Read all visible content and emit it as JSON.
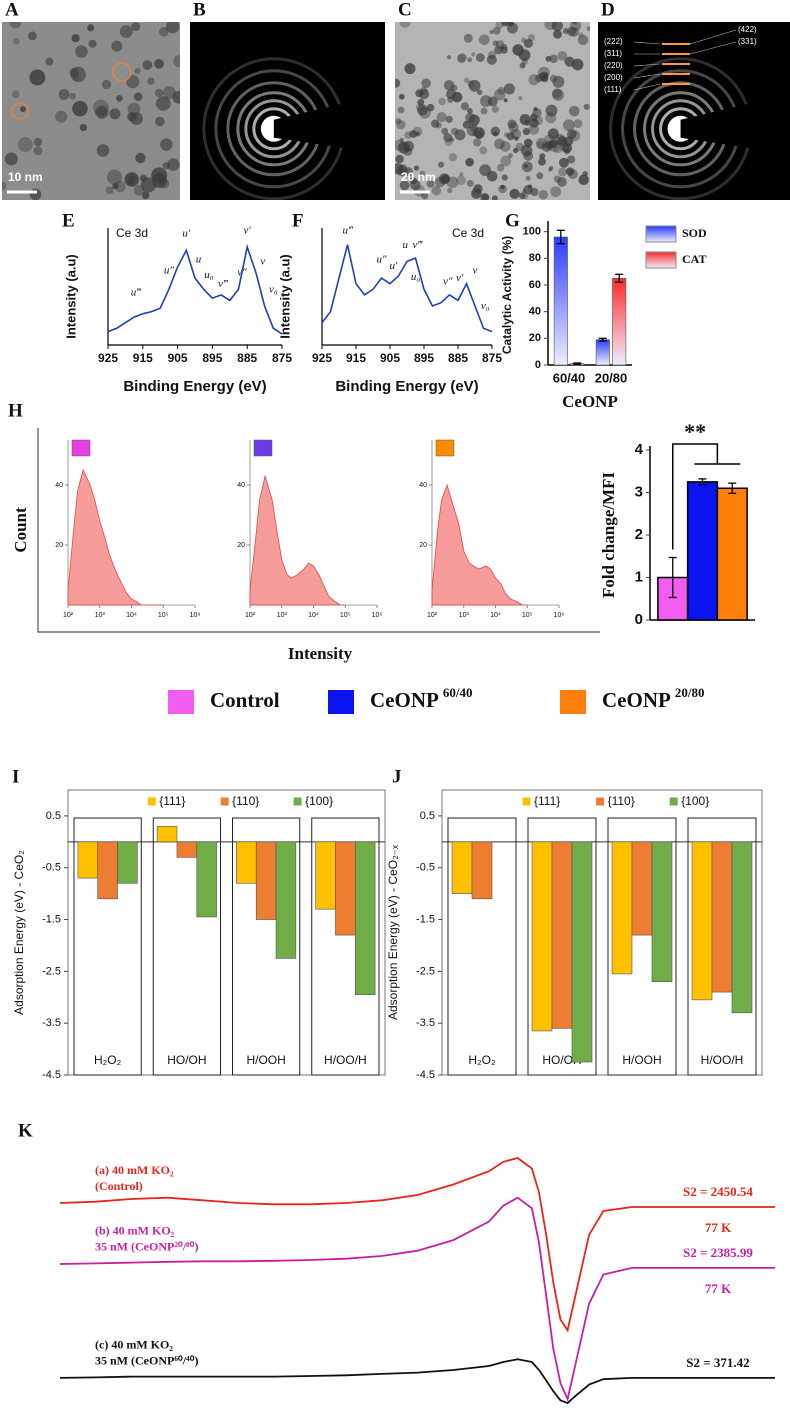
{
  "images": [
    {
      "label": "A",
      "scale_bar": "10 nm"
    },
    {
      "label": "B"
    },
    {
      "label": "C",
      "scale_bar": "20 nm"
    },
    {
      "label": "D",
      "rings": [
        "(222)",
        "(311)",
        "(220)",
        "(200)",
        "(111)"
      ],
      "rings_right": [
        "(422)",
        "(331)"
      ]
    }
  ],
  "chart_data": [
    {
      "type": "line",
      "panel": "E",
      "title": "Ce 3d",
      "title_corner": "top-left",
      "xlabel": "Binding Energy (eV)",
      "ylabel": "Intensity (a.u)",
      "xlim": [
        925,
        875
      ],
      "xticks": [
        925,
        915,
        905,
        895,
        885,
        875
      ],
      "ylim": [
        0,
        1.05
      ],
      "x": [
        925,
        922.5,
        920,
        917.5,
        915,
        912.5,
        910,
        907.5,
        905,
        902.5,
        900,
        897.5,
        895,
        892.5,
        890,
        887.5,
        885,
        882.5,
        880,
        877.5,
        875
      ],
      "series": [
        {
          "color": "#1f3fbf",
          "values": [
            0.12,
            0.15,
            0.2,
            0.25,
            0.28,
            0.3,
            0.33,
            0.5,
            0.7,
            0.85,
            0.6,
            0.5,
            0.42,
            0.45,
            0.4,
            0.5,
            0.88,
            0.65,
            0.35,
            0.15,
            0.1
          ]
        }
      ],
      "annotations": [
        {
          "text": "u‴",
          "x": 917,
          "y": 0.42
        },
        {
          "text": "u″",
          "x": 907.5,
          "y": 0.62
        },
        {
          "text": "u′",
          "x": 902.5,
          "y": 0.95
        },
        {
          "text": "u",
          "x": 899,
          "y": 0.72
        },
        {
          "text": "u₀",
          "x": 896,
          "y": 0.58
        },
        {
          "text": "v‴",
          "x": 892,
          "y": 0.5
        },
        {
          "text": "v″",
          "x": 886.5,
          "y": 0.6
        },
        {
          "text": "v′",
          "x": 885,
          "y": 0.98
        },
        {
          "text": "v",
          "x": 880.5,
          "y": 0.7
        },
        {
          "text": "v₀",
          "x": 877.5,
          "y": 0.45
        }
      ]
    },
    {
      "type": "line",
      "panel": "F",
      "title": "Ce 3d",
      "title_corner": "top-right",
      "xlabel": "Binding Energy (eV)",
      "ylabel": "Intensity (a.u)",
      "xlim": [
        925,
        875
      ],
      "xticks": [
        925,
        915,
        905,
        895,
        885,
        875
      ],
      "ylim": [
        0,
        1.05
      ],
      "x": [
        925,
        922.5,
        920,
        917.5,
        915,
        912.5,
        910,
        907.5,
        905,
        902.5,
        900,
        897.5,
        895,
        892.5,
        890,
        887.5,
        885,
        882.5,
        880,
        877.5,
        875
      ],
      "series": [
        {
          "color": "#1f3fbf",
          "values": [
            0.2,
            0.3,
            0.6,
            0.9,
            0.55,
            0.45,
            0.5,
            0.6,
            0.55,
            0.62,
            0.75,
            0.78,
            0.5,
            0.35,
            0.38,
            0.45,
            0.4,
            0.55,
            0.35,
            0.15,
            0.12
          ]
        }
      ],
      "annotations": [
        {
          "text": "u‴",
          "x": 917.5,
          "y": 0.98
        },
        {
          "text": "u″",
          "x": 907.5,
          "y": 0.72
        },
        {
          "text": "u′",
          "x": 904,
          "y": 0.66
        },
        {
          "text": "u",
          "x": 900.5,
          "y": 0.85
        },
        {
          "text": "v‴",
          "x": 897,
          "y": 0.85
        },
        {
          "text": "u₀",
          "x": 897.5,
          "y": 0.56
        },
        {
          "text": "v″",
          "x": 888,
          "y": 0.52
        },
        {
          "text": "v′",
          "x": 884.5,
          "y": 0.55
        },
        {
          "text": "v",
          "x": 880,
          "y": 0.62
        },
        {
          "text": "v₀",
          "x": 877,
          "y": 0.3
        }
      ]
    },
    {
      "type": "bar",
      "panel": "G",
      "ylabel": "Catalytic Activity (%)",
      "xlabel": "CeONP",
      "categories": [
        "60/40",
        "20/80"
      ],
      "ylim": [
        0,
        105
      ],
      "yticks": [
        0,
        20,
        40,
        60,
        80,
        100
      ],
      "legend": "right",
      "series": [
        {
          "name": "SOD",
          "color": "#2b3cff",
          "values": [
            96,
            19
          ],
          "errors": [
            5,
            1
          ]
        },
        {
          "name": "CAT",
          "color": "#ff2a2a",
          "values": [
            1,
            65
          ],
          "errors": [
            0.5,
            3
          ]
        }
      ]
    },
    {
      "type": "histograms",
      "panel": "H",
      "ylabel": "Count",
      "xlabel": "Intensity",
      "xlim": [
        100,
        1000000
      ],
      "log_x": true,
      "xticks": [
        {
          "value": 100,
          "label": "10²"
        },
        {
          "value": 1000,
          "label": "10³"
        },
        {
          "value": 10000,
          "label": "10⁴"
        },
        {
          "value": 100000,
          "label": "10⁵"
        },
        {
          "value": 1000000,
          "label": "10⁶"
        }
      ],
      "ylim": [
        0,
        55
      ],
      "yticks": [
        20,
        40
      ],
      "x": [
        100,
        150,
        200,
        300,
        500,
        700,
        1000,
        1500,
        2000,
        3000,
        5000,
        7000,
        10000,
        15000,
        20000,
        30000,
        50000,
        70000,
        100000
      ],
      "series": [
        {
          "color": "#f47a7a",
          "marker": "#e43ee4",
          "values": [
            5,
            25,
            38,
            45,
            40,
            35,
            28,
            22,
            17,
            12,
            7,
            4,
            2,
            1,
            0,
            0,
            0,
            0,
            0
          ]
        },
        {
          "color": "#f47a7a",
          "marker": "#6a3de8",
          "values": [
            5,
            22,
            35,
            43,
            35,
            25,
            15,
            10,
            9,
            10,
            12,
            14,
            13,
            10,
            7,
            3,
            1,
            0,
            0
          ]
        },
        {
          "color": "#f47a7a",
          "marker": "#ff8a00",
          "values": [
            5,
            25,
            35,
            40,
            32,
            27,
            18,
            14,
            13,
            12,
            13,
            12,
            9,
            7,
            4,
            2,
            1,
            0,
            0
          ]
        }
      ]
    },
    {
      "type": "bar",
      "ylabel": "Fold change/MFI",
      "annotation": "**",
      "categories": [
        null
      ],
      "ylim": [
        0,
        4
      ],
      "yticks": [
        0,
        1,
        2,
        3,
        4
      ],
      "legend": "bottom",
      "series": [
        {
          "name": "Control",
          "color": "#f25cf0",
          "values": [
            1
          ],
          "errors": [
            0.47
          ]
        },
        {
          "name": "CeONP",
          "name_sup": "60/40",
          "color": "#0a14f0",
          "values": [
            3.25
          ],
          "errors": [
            0.07
          ]
        },
        {
          "name": "CeONP",
          "name_sup": "20/80",
          "color": "#ff7f0a",
          "values": [
            3.1
          ],
          "errors": [
            0.12
          ]
        }
      ]
    },
    {
      "type": "bar",
      "panel": "I",
      "ylabel": "Adsorption Energy (eV) - CeO₂",
      "frame": true,
      "legend": "top",
      "categories": [
        "H₂O₂",
        "HO/OH",
        "H/OOH",
        "H/OO/H"
      ],
      "ylim": [
        -4.5,
        1.0
      ],
      "yticks": [
        -4.5,
        -3.5,
        -2.5,
        -1.5,
        -0.5,
        0.5
      ],
      "series": [
        {
          "name": "{111}",
          "color": "#ffc000",
          "values": [
            -0.7,
            0.3,
            -0.8,
            -1.3
          ]
        },
        {
          "name": "{110}",
          "color": "#ed7d31",
          "values": [
            -1.1,
            -0.3,
            -1.5,
            -1.8
          ]
        },
        {
          "name": "{100}",
          "color": "#70ad47",
          "values": [
            -0.8,
            -1.45,
            -2.25,
            -2.95
          ]
        }
      ]
    },
    {
      "type": "bar",
      "panel": "J",
      "ylabel": "Adsorption Energy (eV) - CeO₂₋ₓ",
      "frame": true,
      "legend": "top",
      "categories": [
        "H₂O₂",
        "HO/OH",
        "H/OOH",
        "H/OO/H"
      ],
      "ylim": [
        -4.5,
        1.0
      ],
      "yticks": [
        -4.5,
        -3.5,
        -2.5,
        -1.5,
        -0.5,
        0.5
      ],
      "series": [
        {
          "name": "{111}",
          "color": "#ffc000",
          "values": [
            -1.0,
            -3.65,
            -2.55,
            -3.05
          ]
        },
        {
          "name": "{110}",
          "color": "#ed7d31",
          "values": [
            -1.1,
            -3.6,
            -1.8,
            -2.9
          ]
        },
        {
          "name": "{100}",
          "color": "#70ad47",
          "values": [
            null,
            -4.25,
            -2.7,
            -3.3
          ]
        }
      ]
    },
    {
      "type": "line",
      "panel": "K",
      "xlim": [
        0,
        100
      ],
      "ylim": [
        0,
        10
      ],
      "x": [
        0,
        5,
        10,
        15,
        20,
        25,
        30,
        35,
        40,
        45,
        50,
        55,
        60,
        62,
        64,
        66,
        67,
        68,
        69,
        70,
        71,
        72,
        74,
        76,
        80,
        90,
        100
      ],
      "series": [
        {
          "color": "#e8241c",
          "label_lines": [
            "(a) 40 mM KO₂",
            "(Control)"
          ],
          "s2": "S2 = 2450.54",
          "temp": "77 K",
          "values": [
            8,
            8.05,
            8.15,
            8.2,
            8.1,
            8.0,
            7.95,
            7.95,
            8.0,
            8.1,
            8.3,
            8.7,
            9.2,
            9.55,
            9.7,
            9.3,
            8.4,
            6.8,
            5.0,
            3.6,
            3.2,
            4.4,
            6.8,
            7.7,
            7.85,
            7.85,
            7.85
          ]
        },
        {
          "color": "#c81ea0",
          "label_lines": [
            "(b) 40 mM KO₂",
            "35 nM (CeONP²⁰/⁸⁰)"
          ],
          "s2": "S2 = 2385.99",
          "temp": "77 K",
          "values": [
            5.7,
            5.72,
            5.75,
            5.78,
            5.8,
            5.8,
            5.82,
            5.85,
            5.9,
            6.0,
            6.2,
            6.6,
            7.3,
            7.9,
            8.2,
            7.8,
            6.5,
            4.5,
            2.5,
            1.2,
            0.6,
            1.8,
            4.2,
            5.3,
            5.55,
            5.55,
            5.55
          ]
        },
        {
          "color": "#111111",
          "label_lines": [
            "(c) 40 mM KO₂",
            "35 nM (CeONP⁶⁰/⁴⁰)"
          ],
          "s2": "S2 = 371.42",
          "values": [
            1.4,
            1.42,
            1.45,
            1.45,
            1.45,
            1.45,
            1.45,
            1.47,
            1.5,
            1.55,
            1.6,
            1.7,
            1.85,
            2.0,
            2.1,
            2.0,
            1.7,
            1.3,
            0.9,
            0.55,
            0.45,
            0.7,
            1.15,
            1.35,
            1.4,
            1.4,
            1.4
          ]
        }
      ]
    }
  ]
}
